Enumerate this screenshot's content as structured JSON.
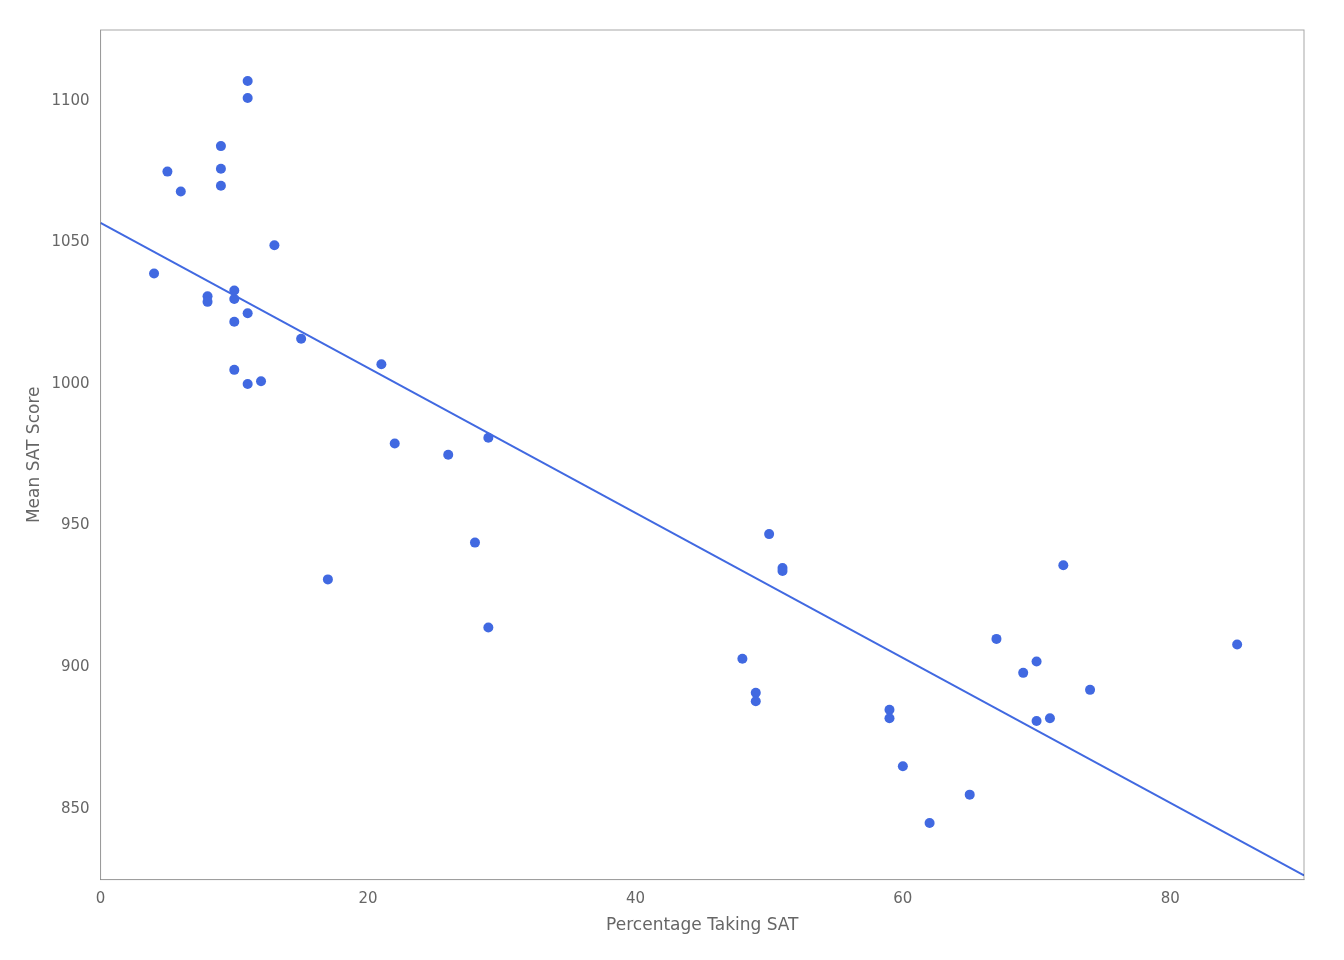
{
  "chart_data": {
    "type": "scatter",
    "xlabel": "Percentage Taking SAT",
    "ylabel": "Mean SAT Score",
    "xlim": [
      0,
      90
    ],
    "ylim": [
      825,
      1125
    ],
    "xticks": [
      0,
      20,
      40,
      60,
      80
    ],
    "yticks": [
      850,
      900,
      950,
      1000,
      1050,
      1100
    ],
    "grid": false,
    "series": [
      {
        "type": "scatter",
        "marker": "circle",
        "color": "#4169E1",
        "x": [
          4,
          5,
          6,
          8,
          8,
          9,
          9,
          9,
          10,
          10,
          10,
          10,
          11,
          11,
          11,
          11,
          12,
          13,
          15,
          17,
          21,
          22,
          26,
          28,
          29,
          29,
          48,
          49,
          49,
          50,
          51,
          51,
          59,
          59,
          60,
          62,
          65,
          67,
          69,
          70,
          70,
          71,
          72,
          74,
          85
        ],
        "values": [
          1039,
          1075,
          1068,
          1031,
          1029,
          1076,
          1070,
          1084,
          1030,
          1033,
          1022,
          1005,
          1107,
          1101,
          1025,
          1000,
          1001,
          1049,
          1016,
          931,
          1007,
          979,
          975,
          944,
          981,
          914,
          903,
          891,
          888,
          947,
          935,
          934,
          885,
          882,
          865,
          845,
          855,
          910,
          898,
          902,
          881,
          882,
          936,
          892,
          908
        ]
      },
      {
        "type": "line",
        "line_style": "solid",
        "color": "#4169E1",
        "x": [
          0,
          90
        ],
        "values": [
          1056.911,
          826.487
        ]
      }
    ]
  }
}
